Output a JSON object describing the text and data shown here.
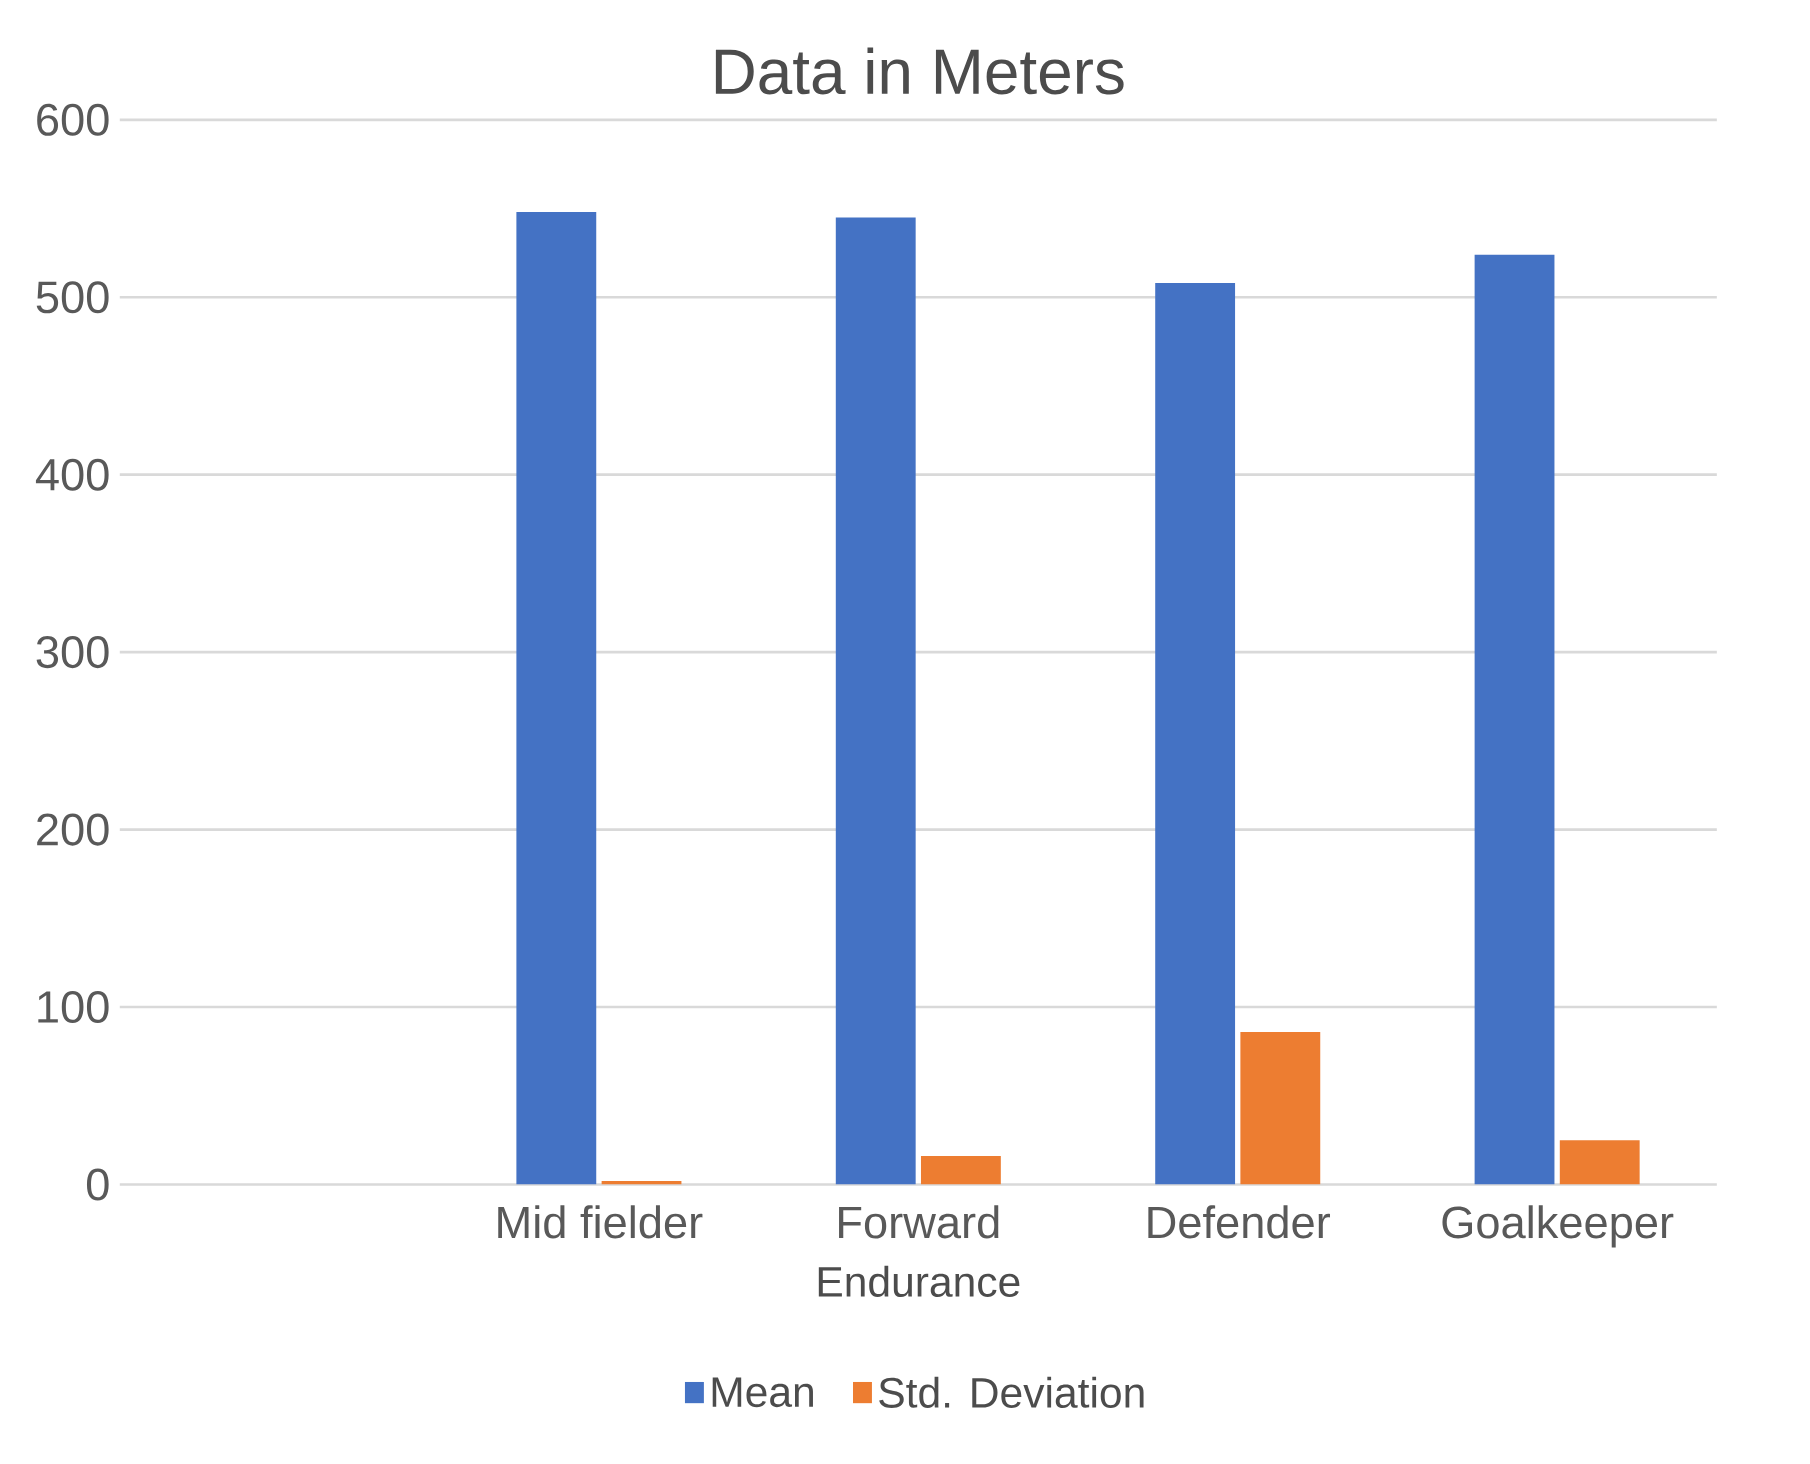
{
  "chart_data": {
    "type": "bar",
    "title": "Data in Meters",
    "xlabel": "Endurance",
    "categories": [
      null,
      "Mid fielder",
      "Forward",
      "Defender",
      "Goalkeeper"
    ],
    "series": [
      {
        "name": "Mean",
        "color": "#4472c4",
        "values": [
          null,
          548,
          545,
          508,
          524
        ]
      },
      {
        "name": "Std. Deviation",
        "color": "#ed7d31",
        "values": [
          null,
          2,
          16,
          86,
          25
        ]
      }
    ],
    "ylim": [
      0,
      600
    ],
    "yticks": [
      0,
      100,
      200,
      300,
      400,
      500,
      600
    ],
    "grid": "y",
    "legend": "bottom"
  }
}
